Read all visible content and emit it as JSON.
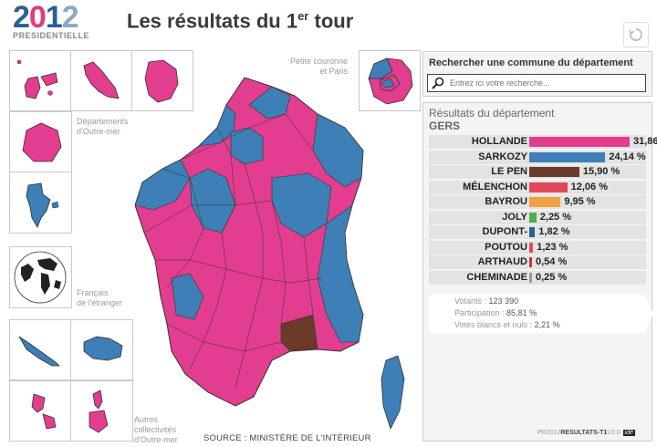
{
  "logo": {
    "year_parts": [
      "2",
      "0",
      "1",
      "2"
    ],
    "subtitle": "PRESIDENTIELLE"
  },
  "title": {
    "main": "Les résultats du 1",
    "sup": "er",
    "end": " tour"
  },
  "labels": {
    "dom": "Départements\nd'Outre-mer",
    "etranger": "Français\nde l'étranger",
    "com": "Autres\ncollectivités\nd'Outre-mer",
    "petite_couronne": "Petite couronne\net Paris"
  },
  "source": "SOURCE : MINISTÈRE DE L'INTÉRIEUR",
  "search": {
    "title": "Rechercher une commune du département",
    "placeholder": "Entrez ici votre recherche..."
  },
  "results": {
    "title": "Résultats du département",
    "department": "GERS",
    "candidates": [
      {
        "name": "HOLLANDE",
        "value": 31.86,
        "pct": "31,86 %",
        "color": "#e23d8f"
      },
      {
        "name": "SARKOZY",
        "value": 24.14,
        "pct": "24,14 %",
        "color": "#3d7fb6"
      },
      {
        "name": "LE PEN",
        "value": 15.9,
        "pct": "15,90 %",
        "color": "#6b3a2a"
      },
      {
        "name": "MÉLENCHON",
        "value": 12.06,
        "pct": "12,06 %",
        "color": "#e0485a"
      },
      {
        "name": "BAYROU",
        "value": 9.95,
        "pct": "9,95 %",
        "color": "#f0a040"
      },
      {
        "name": "JOLY",
        "value": 2.25,
        "pct": "2,25 %",
        "color": "#4caf50"
      },
      {
        "name": "DUPONT-",
        "value": 1.82,
        "pct": "1,82 %",
        "color": "#2c5f93"
      },
      {
        "name": "POUTOU",
        "value": 1.23,
        "pct": "1,23 %",
        "color": "#e0485a"
      },
      {
        "name": "ARTHAUD",
        "value": 0.54,
        "pct": "0,54 %",
        "color": "#c0392b"
      },
      {
        "name": "CHEMINADE",
        "value": 0.25,
        "pct": "0,25 %",
        "color": "#999999"
      }
    ],
    "stats": [
      {
        "label": "Votants :",
        "value": "123 390"
      },
      {
        "label": "Participation :",
        "value": "85,81 %"
      },
      {
        "label": "Votes blancs et nuls :",
        "value": "2,21 %"
      }
    ],
    "footer": {
      "prefix": "PR",
      "year": "2012",
      "name": "RESULTATS-T1",
      "version": "V2.0",
      "badge": "idé"
    }
  },
  "colors": {
    "hollande": "#e23d8f",
    "sarkozy": "#3d7fb6",
    "lepen": "#6b3a2a"
  }
}
